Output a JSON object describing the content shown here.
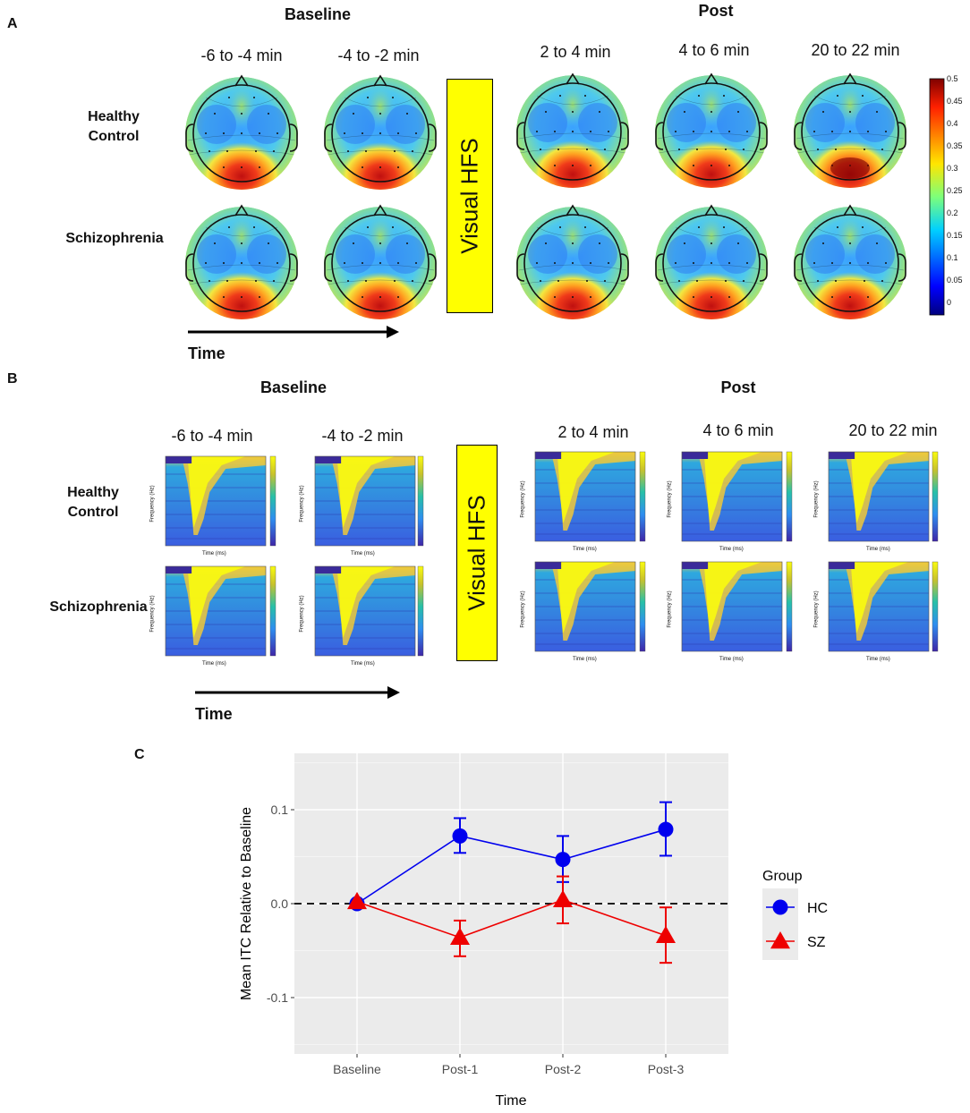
{
  "panel_a": {
    "letter": "A",
    "baseline_header": "Baseline",
    "post_header": "Post",
    "columns": [
      "-6 to -4 min",
      "-4 to -2 min",
      "2 to 4 min",
      "4 to 6 min",
      "20 to 22 min"
    ],
    "rows": [
      "Healthy Control",
      "Schizophrenia"
    ],
    "hfs_label": "Visual HFS",
    "time_label": "Time",
    "colorbar_ticks": [
      "0.5",
      "0.45",
      "0.4",
      "0.35",
      "0.3",
      "0.25",
      "0.2",
      "0.15",
      "0.1",
      "0.05",
      "0"
    ]
  },
  "panel_b": {
    "letter": "B",
    "baseline_header": "Baseline",
    "post_header": "Post",
    "columns": [
      "-6 to -4 min",
      "-4 to -2 min",
      "2 to 4 min",
      "4 to 6 min",
      "20 to 22 min"
    ],
    "rows": [
      "Healthy Control",
      "Schizophrenia"
    ],
    "hfs_label": "Visual HFS",
    "time_label": "Time",
    "x_axis_label": "Time (ms)",
    "y_axis_label": "Frequency (Hz)"
  },
  "panel_c": {
    "letter": "C",
    "legend_title": "Group",
    "colors": {
      "HC": "#0000ee",
      "SZ": "#ee0000",
      "panel_bg": "#ebebeb"
    }
  },
  "chart_data": {
    "type": "line",
    "title": "",
    "xlabel": "Time",
    "ylabel": "Mean ITC Relative to Baseline",
    "categories": [
      "Baseline",
      "Post-1",
      "Post-2",
      "Post-3"
    ],
    "ylim": [
      -0.16,
      0.16
    ],
    "yticks": [
      -0.1,
      0.0,
      0.1
    ],
    "ytick_labels": [
      "-0.1",
      "0.0",
      "0.1"
    ],
    "reference_line": 0.0,
    "legend_position": "right",
    "series": [
      {
        "name": "HC",
        "marker": "circle",
        "values": [
          0.0,
          0.072,
          0.047,
          0.079
        ],
        "err_low": [
          0.0,
          0.054,
          0.023,
          0.051
        ],
        "err_high": [
          0.0,
          0.091,
          0.072,
          0.108
        ]
      },
      {
        "name": "SZ",
        "marker": "triangle",
        "values": [
          0.002,
          -0.036,
          0.004,
          -0.034
        ],
        "err_low": [
          0.002,
          -0.056,
          -0.021,
          -0.063
        ],
        "err_high": [
          0.002,
          -0.018,
          0.029,
          -0.004
        ]
      }
    ]
  }
}
